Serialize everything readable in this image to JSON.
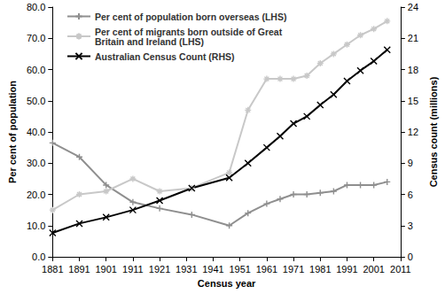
{
  "chart_data": {
    "type": "line",
    "x_label": "Census year",
    "y_label": "Per cent of population",
    "y2_label": "Census count (millions)",
    "x": [
      1881,
      1891,
      1901,
      1911,
      1921,
      1933,
      1947,
      1954,
      1961,
      1966,
      1971,
      1976,
      1981,
      1986,
      1991,
      1996,
      2001,
      2006
    ],
    "xlim": [
      1881,
      2011
    ],
    "xticks": [
      1881,
      1891,
      1901,
      1911,
      1921,
      1931,
      1941,
      1951,
      1961,
      1971,
      1981,
      1991,
      2001,
      2011
    ],
    "ylim": [
      0,
      80
    ],
    "yticks": [
      {
        "value": 0,
        "label": "0.0"
      },
      {
        "value": 10,
        "label": "10.0"
      },
      {
        "value": 20,
        "label": "20.0"
      },
      {
        "value": 30,
        "label": "30.0"
      },
      {
        "value": 40,
        "label": "40.0"
      },
      {
        "value": 50,
        "label": "50.0"
      },
      {
        "value": 60,
        "label": "60.0"
      },
      {
        "value": 70,
        "label": "70.0"
      },
      {
        "value": 80,
        "label": "80.0"
      }
    ],
    "y2lim": [
      0,
      24
    ],
    "y2ticks": [
      0,
      3,
      6,
      9,
      12,
      15,
      18,
      21,
      24
    ],
    "grid": false,
    "legend": "upper left",
    "series": [
      {
        "name": "Per cent of population born overseas (LHS)",
        "color": "#8f8f8f",
        "marker": "plus",
        "values": [
          36.5,
          32.0,
          23.0,
          17.5,
          15.5,
          13.5,
          10.0,
          14.0,
          17.0,
          18.5,
          20.0,
          20.0,
          20.5,
          21.0,
          23.0,
          23.0,
          23.0,
          24.0
        ]
      },
      {
        "name": "Per cent of migrants born outside of Great Britain and Ireland (LHS)",
        "color": "#c8c8c8",
        "marker": "asterisk",
        "values": [
          15.0,
          20.0,
          21.0,
          25.0,
          21.0,
          22.0,
          27.0,
          47.0,
          57.0,
          57.0,
          57.0,
          58.0,
          62.0,
          65.0,
          68.0,
          71.0,
          73.0,
          75.5
        ]
      },
      {
        "name": "Australian Census Count (RHS)",
        "color": "#000000",
        "marker": "x",
        "axis": "y2",
        "values": [
          2.3,
          3.2,
          3.8,
          4.5,
          5.4,
          6.6,
          7.6,
          9.0,
          10.5,
          11.6,
          12.8,
          13.5,
          14.6,
          15.6,
          16.9,
          17.9,
          18.8,
          19.9
        ]
      }
    ]
  }
}
